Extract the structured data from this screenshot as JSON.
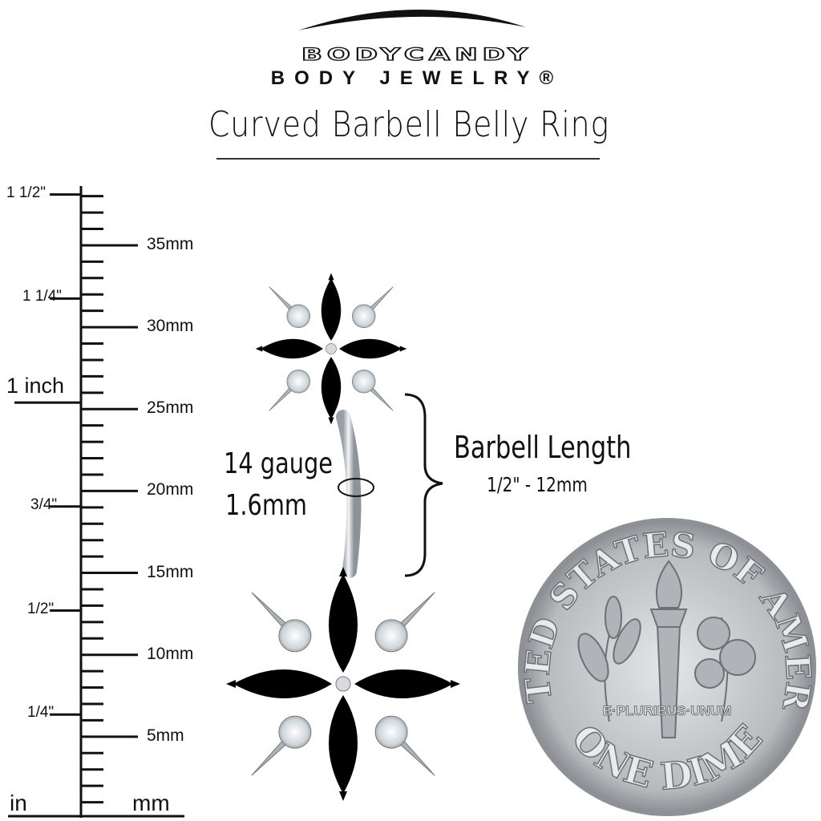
{
  "brand": {
    "logo_text": "BODYCANDY",
    "logo_subtext": "BODY JEWELRY®"
  },
  "title": "Curved Barbell Belly Ring",
  "ruler": {
    "unit_left": "in",
    "unit_right": "mm",
    "inch_labels": [
      "1/4\"",
      "1/2\"",
      "3/4\"",
      "1 inch",
      "1 1/4\"",
      "1 1/2\""
    ],
    "mm_labels": [
      "5mm",
      "10mm",
      "15mm",
      "20mm",
      "25mm",
      "30mm",
      "35mm"
    ]
  },
  "gauge": {
    "line1": "14 gauge",
    "line2": "1.6mm"
  },
  "barbell_length": {
    "label": "Barbell Length",
    "value": "1/2\" - 12mm"
  },
  "dime": {
    "top_text": "UNITED STATES OF AMERICA",
    "motto": "E·PLURIBUS·UNUM",
    "bottom_text": "ONE DIME"
  },
  "colors": {
    "gem": "#3ec3dc",
    "gem_dark": "#0f8fae",
    "metal": "#c9ccd0",
    "pearl": "#eef2f4",
    "dime": "#c4c6c8"
  }
}
